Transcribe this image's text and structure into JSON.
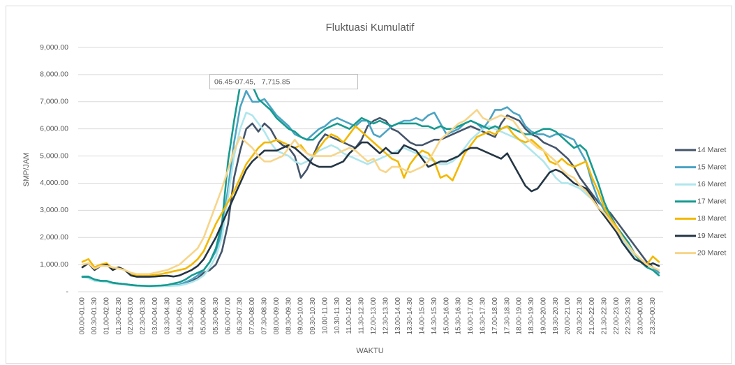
{
  "chart_data": {
    "type": "line",
    "title": "Fluktuasi Kumulatif",
    "x_label": "WAKTU",
    "y_label": "SMP/JAM",
    "annotation": "06.45-07.45,   7,715.85",
    "grid": true,
    "legend": "right",
    "ylim": [
      0,
      9000
    ],
    "yticks": [
      {
        "value": 0,
        "label": "-"
      },
      {
        "value": 1000,
        "label": "1,000.00"
      },
      {
        "value": 2000,
        "label": "2,000.00"
      },
      {
        "value": 3000,
        "label": "3,000.00"
      },
      {
        "value": 4000,
        "label": "4,000.00"
      },
      {
        "value": 5000,
        "label": "5,000.00"
      },
      {
        "value": 6000,
        "label": "6,000.00"
      },
      {
        "value": 7000,
        "label": "7,000.00"
      },
      {
        "value": 8000,
        "label": "8,000.00"
      },
      {
        "value": 9000,
        "label": "9,000.00"
      }
    ],
    "categories": [
      "00.00-01.00",
      null,
      "00.30-01.30",
      null,
      "01.00-02.00",
      null,
      "01.30-02.30",
      null,
      "02.00-03.00",
      null,
      "02.30-03.30",
      null,
      "03.00-04.00",
      null,
      "03.30-04.30",
      null,
      "04.00-05.00",
      null,
      "04.30-05.30",
      null,
      "05.00-06.00",
      null,
      "05.30-06.30",
      null,
      "06.00-07.00",
      null,
      "06.30-07.30",
      null,
      "07.00-08.00",
      null,
      "07.30-08.30",
      null,
      "08.00-09.00",
      null,
      "08.30-09.30",
      null,
      "09.00-10.00",
      null,
      "09.30-10.30",
      null,
      "10.00-11.00",
      null,
      "10.30-11.30",
      null,
      "11.00-12.00",
      null,
      "11.30-12.30",
      null,
      "12.00-13.00",
      null,
      "12.30-13.30",
      null,
      "13.00-14.00",
      null,
      "13.30-14.30",
      null,
      "14.00-15.00",
      null,
      "14.30-15.30",
      null,
      "15.00-16.00",
      null,
      "15.30-16.30",
      null,
      "16.00-17.00",
      null,
      "16.30-17.30",
      null,
      "17.00-18.00",
      null,
      "17.30-18.30",
      null,
      "18.00-19.00",
      null,
      "18.30-19.30",
      null,
      "19.00-20.00",
      null,
      "19.30-20.30",
      null,
      "20.00-21.00",
      null,
      "20.30-21.30",
      null,
      "21.00-22.00",
      null,
      "21.30-22.30",
      null,
      "22.00-23.00",
      null,
      "22.30-23.30",
      null,
      "23.00-00.00",
      null,
      "23.30-00.30",
      null
    ],
    "series": [
      {
        "name": "14 Maret",
        "color": "#44546a",
        "values": [
          560,
          540,
          450,
          400,
          380,
          330,
          300,
          280,
          250,
          220,
          210,
          200,
          200,
          210,
          220,
          230,
          250,
          300,
          400,
          500,
          700,
          800,
          1000,
          1500,
          2500,
          4200,
          5200,
          6000,
          6200,
          5900,
          6200,
          6000,
          5600,
          5400,
          5300,
          5000,
          4200,
          4500,
          5000,
          5500,
          5800,
          5700,
          5600,
          5500,
          5400,
          5300,
          5600,
          6100,
          6300,
          6400,
          6300,
          6000,
          5900,
          5700,
          5500,
          5400,
          5400,
          5500,
          5600,
          5600,
          5700,
          5800,
          5900,
          6000,
          6100,
          6000,
          5900,
          5800,
          5700,
          6200,
          6500,
          6400,
          6300,
          6000,
          5800,
          5700,
          5500,
          5400,
          5300,
          5100,
          4900,
          4600,
          4200,
          3900,
          3600,
          3300,
          3100,
          2900,
          2600,
          2300,
          2000,
          1700,
          1400,
          1100,
          900,
          700
        ]
      },
      {
        "name": "15 Maret",
        "color": "#4ba3c3",
        "values": [
          560,
          560,
          450,
          400,
          380,
          320,
          300,
          280,
          240,
          220,
          200,
          200,
          210,
          220,
          230,
          250,
          260,
          350,
          450,
          600,
          800,
          1100,
          1500,
          2200,
          3800,
          5500,
          6800,
          7400,
          7000,
          7000,
          7100,
          6800,
          6500,
          6300,
          6100,
          5800,
          5700,
          5600,
          5800,
          6000,
          6100,
          6300,
          6400,
          6300,
          6200,
          6100,
          6300,
          6300,
          5800,
          5700,
          5900,
          6100,
          6200,
          6300,
          6300,
          6400,
          6300,
          6500,
          6600,
          6200,
          5800,
          5900,
          6000,
          6200,
          6300,
          6200,
          6000,
          6300,
          6700,
          6700,
          6800,
          6600,
          6500,
          6100,
          5900,
          5800,
          5800,
          5700,
          5800,
          5800,
          5700,
          5600,
          5200,
          4800,
          4000,
          3400,
          3000,
          2600,
          2300,
          2000,
          1700,
          1400,
          1200,
          1000,
          900,
          700
        ]
      },
      {
        "name": "16 Maret",
        "color": "#aee6ec",
        "values": [
          550,
          500,
          400,
          380,
          350,
          300,
          280,
          260,
          230,
          210,
          200,
          190,
          190,
          200,
          210,
          220,
          230,
          280,
          350,
          450,
          600,
          900,
          1300,
          2000,
          3500,
          5000,
          6000,
          6600,
          6500,
          6200,
          5900,
          5500,
          5200,
          5100,
          5000,
          4800,
          4700,
          4800,
          5000,
          5200,
          5300,
          5400,
          5300,
          5100,
          5000,
          4900,
          4800,
          4700,
          4800,
          4900,
          5000,
          5100,
          5200,
          5300,
          5200,
          5100,
          5000,
          4900,
          4800,
          4700,
          4700,
          4800,
          5000,
          5300,
          5600,
          5800,
          6000,
          6100,
          6000,
          5900,
          5800,
          5700,
          5600,
          5400,
          5200,
          5000,
          4800,
          4500,
          4200,
          4000,
          4000,
          3900,
          3800,
          3600,
          3400,
          3100,
          2800,
          2500,
          2200,
          1900,
          1600,
          1300,
          1100,
          900,
          800,
          600
        ]
      },
      {
        "name": "17 Maret",
        "color": "#179a90",
        "values": [
          540,
          550,
          450,
          400,
          400,
          330,
          300,
          280,
          250,
          230,
          220,
          210,
          220,
          230,
          250,
          300,
          350,
          450,
          600,
          700,
          800,
          1100,
          1600,
          2500,
          4800,
          6300,
          7600,
          7715.85,
          7600,
          7100,
          6900,
          6700,
          6400,
          6200,
          6000,
          5900,
          5700,
          5600,
          5600,
          5800,
          6000,
          6100,
          6200,
          6100,
          6000,
          6200,
          6400,
          6300,
          6200,
          6300,
          6200,
          6100,
          6200,
          6200,
          6200,
          6200,
          6100,
          6100,
          6000,
          6100,
          6000,
          6000,
          6100,
          6200,
          6300,
          6200,
          6100,
          6000,
          6100,
          6000,
          6100,
          6000,
          5900,
          5800,
          5800,
          5900,
          6000,
          6000,
          5900,
          5700,
          5500,
          5300,
          5400,
          5200,
          4600,
          4000,
          3300,
          2800,
          2400,
          2100,
          1800,
          1400,
          1100,
          900,
          800,
          600
        ]
      },
      {
        "name": "18 Maret",
        "color": "#f2b800",
        "values": [
          1100,
          1200,
          900,
          1000,
          1050,
          850,
          900,
          800,
          650,
          600,
          580,
          600,
          620,
          650,
          700,
          750,
          800,
          850,
          1000,
          1200,
          1500,
          2000,
          2500,
          2900,
          3300,
          3700,
          4200,
          4700,
          5000,
          5300,
          5500,
          5500,
          5600,
          5500,
          5400,
          5300,
          5400,
          5100,
          5000,
          5300,
          5600,
          5800,
          5700,
          5500,
          5800,
          6100,
          5900,
          5700,
          5500,
          5300,
          5100,
          4900,
          4800,
          4200,
          4700,
          5000,
          5200,
          5100,
          4800,
          4200,
          4300,
          4100,
          4600,
          5100,
          5400,
          5700,
          5800,
          5900,
          5800,
          6000,
          6100,
          5800,
          5600,
          5500,
          5600,
          5400,
          5200,
          4800,
          4700,
          4900,
          4700,
          4600,
          4700,
          4800,
          4200,
          3700,
          3100,
          2700,
          2400,
          2000,
          1700,
          1400,
          1200,
          1000,
          1300,
          1100
        ]
      },
      {
        "name": "19 Maret",
        "color": "#243544",
        "values": [
          900,
          1050,
          800,
          950,
          1000,
          800,
          900,
          800,
          600,
          550,
          550,
          550,
          560,
          580,
          590,
          560,
          600,
          700,
          800,
          950,
          1200,
          1600,
          2000,
          2500,
          3000,
          3500,
          4000,
          4500,
          4800,
          5000,
          5200,
          5200,
          5200,
          5300,
          5400,
          5300,
          5100,
          4900,
          4700,
          4600,
          4600,
          4600,
          4700,
          4800,
          5100,
          5300,
          5500,
          5500,
          5300,
          5100,
          5300,
          5100,
          5100,
          5400,
          5300,
          5200,
          4900,
          4600,
          4700,
          4800,
          4800,
          4900,
          5000,
          5200,
          5300,
          5300,
          5200,
          5100,
          5000,
          4900,
          5100,
          4700,
          4300,
          3900,
          3700,
          3800,
          4100,
          4400,
          4500,
          4400,
          4200,
          4000,
          3900,
          3800,
          3500,
          3100,
          2800,
          2500,
          2200,
          1800,
          1500,
          1200,
          1100,
          950,
          1050,
          950
        ]
      },
      {
        "name": "20 Maret",
        "color": "#f7d58a",
        "values": [
          1000,
          1050,
          850,
          950,
          950,
          900,
          850,
          800,
          700,
          650,
          650,
          650,
          700,
          750,
          800,
          900,
          1000,
          1200,
          1400,
          1600,
          2000,
          2600,
          3200,
          3800,
          4500,
          5200,
          5700,
          5500,
          5300,
          5000,
          4800,
          4800,
          4900,
          5000,
          5300,
          5600,
          5300,
          5100,
          5000,
          5000,
          5000,
          5000,
          5100,
          5200,
          5300,
          5200,
          5000,
          4800,
          4900,
          4500,
          4400,
          4600,
          4600,
          4500,
          4400,
          4500,
          4600,
          4800,
          5200,
          5600,
          5800,
          6000,
          6200,
          6300,
          6500,
          6700,
          6400,
          6300,
          6400,
          6500,
          6400,
          6300,
          6000,
          5700,
          5500,
          5300,
          5200,
          5000,
          4800,
          4500,
          4300,
          4200,
          3900,
          3700,
          3400,
          3100,
          2900,
          2600,
          2300,
          2000,
          1700,
          1400,
          1200,
          1000,
          900,
          800
        ]
      }
    ]
  }
}
